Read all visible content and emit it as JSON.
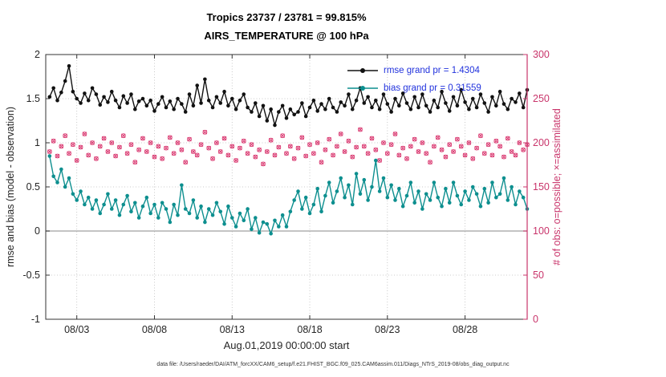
{
  "colors": {
    "background": "#ffffff",
    "rmse": "#111111",
    "bias": "#0d8f8f",
    "obs": "#da3b72",
    "right_axis": "#c9356b",
    "axis": "#333333",
    "axis_text": "#262626",
    "grid": "#bbbbbb",
    "zero_line": "#b0b0b0",
    "legend_text": "#2233dd"
  },
  "chart_data": {
    "type": "line",
    "title": "Tropics 23737 / 23781 = 99.815%",
    "subtitle": "AIRS_TEMPERATURE @ 100 hPa",
    "xlabel": "Aug.01,2019 00:00:00 start",
    "ylabel_left": "rmse and bias (model - observation)",
    "ylabel_right": "# of obs: o=possible; ×=assimilated",
    "footer": "data file: /Users/raeder/DAI/ATM_forcXX/CAM6_setup/f.e21.FHIST_BGC.f09_025.CAM6assim.011/Diags_NTrS_2019-08/obs_diag_output.nc",
    "ylim_left": [
      -1,
      2
    ],
    "ylim_right": [
      0,
      300
    ],
    "xlim_days": [
      0,
      31
    ],
    "x_start_day": 0.25,
    "x_step_days": 0.25,
    "grid": true,
    "legend_position": "top-right-inside",
    "xticks": [
      {
        "day": 2,
        "label": "08/03"
      },
      {
        "day": 7,
        "label": "08/08"
      },
      {
        "day": 12,
        "label": "08/13"
      },
      {
        "day": 17,
        "label": "08/18"
      },
      {
        "day": 22,
        "label": "08/23"
      },
      {
        "day": 27,
        "label": "08/28"
      }
    ],
    "yticks_left": [
      {
        "v": -1,
        "label": "-1"
      },
      {
        "v": -0.5,
        "label": "-0.5"
      },
      {
        "v": 0,
        "label": "0"
      },
      {
        "v": 0.5,
        "label": "0.5"
      },
      {
        "v": 1,
        "label": "1"
      },
      {
        "v": 1.5,
        "label": "1.5"
      },
      {
        "v": 2,
        "label": "2"
      }
    ],
    "yticks_right": [
      {
        "v": 0,
        "label": "0"
      },
      {
        "v": 50,
        "label": "50"
      },
      {
        "v": 100,
        "label": "100"
      },
      {
        "v": 150,
        "label": "150"
      },
      {
        "v": 200,
        "label": "200"
      },
      {
        "v": 250,
        "label": "250"
      },
      {
        "v": 300,
        "label": "300"
      }
    ],
    "legend": [
      {
        "label": "rmse grand pr = 1.4304",
        "color": "#111111",
        "marker": "dot"
      },
      {
        "label": "bias grand pr = 0.31559",
        "color": "#0d8f8f",
        "marker": "dot"
      }
    ],
    "series": [
      {
        "name": "obs_possible",
        "axis": "right",
        "marker": "o",
        "line": false,
        "color": "#da3b72",
        "values": [
          190,
          202,
          185,
          196,
          208,
          188,
          198,
          180,
          195,
          210,
          186,
          200,
          182,
          196,
          205,
          190,
          200,
          185,
          195,
          208,
          188,
          198,
          178,
          192,
          205,
          190,
          200,
          184,
          196,
          182,
          194,
          206,
          188,
          200,
          192,
          178,
          204,
          190,
          186,
          198,
          212,
          194,
          182,
          200,
          190,
          205,
          186,
          196,
          180,
          194,
          202,
          188,
          198,
          184,
          192,
          176,
          190,
          203,
          186,
          195,
          208,
          188,
          196,
          182,
          194,
          206,
          185,
          198,
          188,
          200,
          178,
          192,
          204,
          186,
          196,
          210,
          190,
          202,
          184,
          195,
          215,
          196,
          188,
          205,
          192,
          180,
          200,
          188,
          198,
          210,
          186,
          194,
          182,
          196,
          204,
          190,
          200,
          188,
          178,
          196,
          206,
          192,
          184,
          198,
          190,
          204,
          196,
          186,
          200,
          182,
          194,
          208,
          188,
          198,
          186,
          202,
          196,
          184,
          205,
          190,
          186,
          200,
          192,
          198
        ]
      },
      {
        "name": "obs_assimilated",
        "axis": "right",
        "marker": "x",
        "line": false,
        "color": "#da3b72",
        "values": [
          190,
          202,
          185,
          196,
          208,
          188,
          198,
          180,
          195,
          210,
          186,
          200,
          182,
          196,
          205,
          190,
          200,
          185,
          195,
          208,
          188,
          198,
          178,
          192,
          205,
          190,
          200,
          184,
          196,
          182,
          194,
          206,
          188,
          200,
          192,
          178,
          204,
          190,
          186,
          198,
          212,
          194,
          182,
          200,
          190,
          205,
          186,
          196,
          180,
          194,
          202,
          188,
          198,
          184,
          192,
          176,
          190,
          203,
          186,
          195,
          208,
          188,
          196,
          182,
          194,
          206,
          185,
          198,
          188,
          200,
          178,
          192,
          204,
          186,
          196,
          210,
          190,
          202,
          184,
          195,
          215,
          196,
          188,
          205,
          192,
          180,
          200,
          188,
          198,
          210,
          186,
          194,
          182,
          196,
          204,
          190,
          200,
          188,
          178,
          196,
          206,
          192,
          184,
          198,
          190,
          204,
          196,
          186,
          200,
          182,
          194,
          208,
          188,
          198,
          186,
          202,
          196,
          184,
          205,
          190,
          186,
          200,
          192,
          198
        ]
      },
      {
        "name": "bias",
        "axis": "left",
        "marker": "dot",
        "line": true,
        "color": "#0d8f8f",
        "values": [
          0.85,
          0.62,
          0.55,
          0.7,
          0.5,
          0.6,
          0.42,
          0.35,
          0.45,
          0.3,
          0.38,
          0.25,
          0.35,
          0.2,
          0.3,
          0.42,
          0.25,
          0.35,
          0.18,
          0.3,
          0.4,
          0.22,
          0.32,
          0.15,
          0.28,
          0.38,
          0.2,
          0.3,
          0.15,
          0.32,
          0.25,
          0.1,
          0.3,
          0.18,
          0.52,
          0.25,
          0.2,
          0.35,
          0.15,
          0.28,
          0.1,
          0.25,
          0.18,
          0.32,
          0.22,
          0.08,
          0.28,
          0.15,
          0.05,
          0.2,
          0.12,
          0.25,
          0.02,
          0.15,
          -0.02,
          0.1,
          0.08,
          -0.03,
          0.12,
          0.05,
          0.18,
          0.05,
          0.22,
          0.35,
          0.45,
          0.25,
          0.38,
          0.2,
          0.3,
          0.48,
          0.22,
          0.4,
          0.55,
          0.32,
          0.45,
          0.6,
          0.38,
          0.52,
          0.3,
          0.65,
          0.42,
          0.58,
          0.35,
          0.5,
          0.8,
          0.45,
          0.6,
          0.38,
          0.52,
          0.35,
          0.48,
          0.28,
          0.4,
          0.55,
          0.32,
          0.45,
          0.25,
          0.42,
          0.35,
          0.55,
          0.38,
          0.28,
          0.48,
          0.32,
          0.55,
          0.4,
          0.3,
          0.45,
          0.35,
          0.5,
          0.42,
          0.28,
          0.48,
          0.32,
          0.55,
          0.38,
          0.42,
          0.6,
          0.35,
          0.5,
          0.3,
          0.45,
          0.38,
          0.25
        ]
      },
      {
        "name": "rmse",
        "axis": "left",
        "marker": "dot",
        "line": true,
        "color": "#111111",
        "values": [
          1.52,
          1.62,
          1.48,
          1.57,
          1.7,
          1.87,
          1.58,
          1.5,
          1.45,
          1.56,
          1.48,
          1.62,
          1.55,
          1.43,
          1.52,
          1.46,
          1.58,
          1.48,
          1.4,
          1.53,
          1.45,
          1.55,
          1.38,
          1.47,
          1.5,
          1.42,
          1.48,
          1.36,
          1.44,
          1.52,
          1.4,
          1.47,
          1.38,
          1.5,
          1.44,
          1.35,
          1.55,
          1.42,
          1.65,
          1.45,
          1.72,
          1.48,
          1.4,
          1.52,
          1.45,
          1.58,
          1.42,
          1.5,
          1.38,
          1.48,
          1.55,
          1.4,
          1.35,
          1.45,
          1.3,
          1.42,
          1.25,
          1.38,
          1.2,
          1.35,
          1.42,
          1.28,
          1.38,
          1.32,
          1.35,
          1.45,
          1.3,
          1.4,
          1.48,
          1.36,
          1.44,
          1.38,
          1.5,
          1.4,
          1.35,
          1.46,
          1.42,
          1.55,
          1.38,
          1.48,
          1.62,
          1.45,
          1.52,
          1.4,
          1.48,
          1.38,
          1.55,
          1.44,
          1.35,
          1.5,
          1.42,
          1.56,
          1.45,
          1.38,
          1.52,
          1.4,
          1.55,
          1.42,
          1.35,
          1.48,
          1.4,
          1.58,
          1.45,
          1.36,
          1.52,
          1.42,
          1.6,
          1.46,
          1.38,
          1.5,
          1.4,
          1.55,
          1.45,
          1.35,
          1.52,
          1.42,
          1.58,
          1.44,
          1.38,
          1.5,
          1.46,
          1.56,
          1.4,
          1.6
        ]
      }
    ]
  }
}
